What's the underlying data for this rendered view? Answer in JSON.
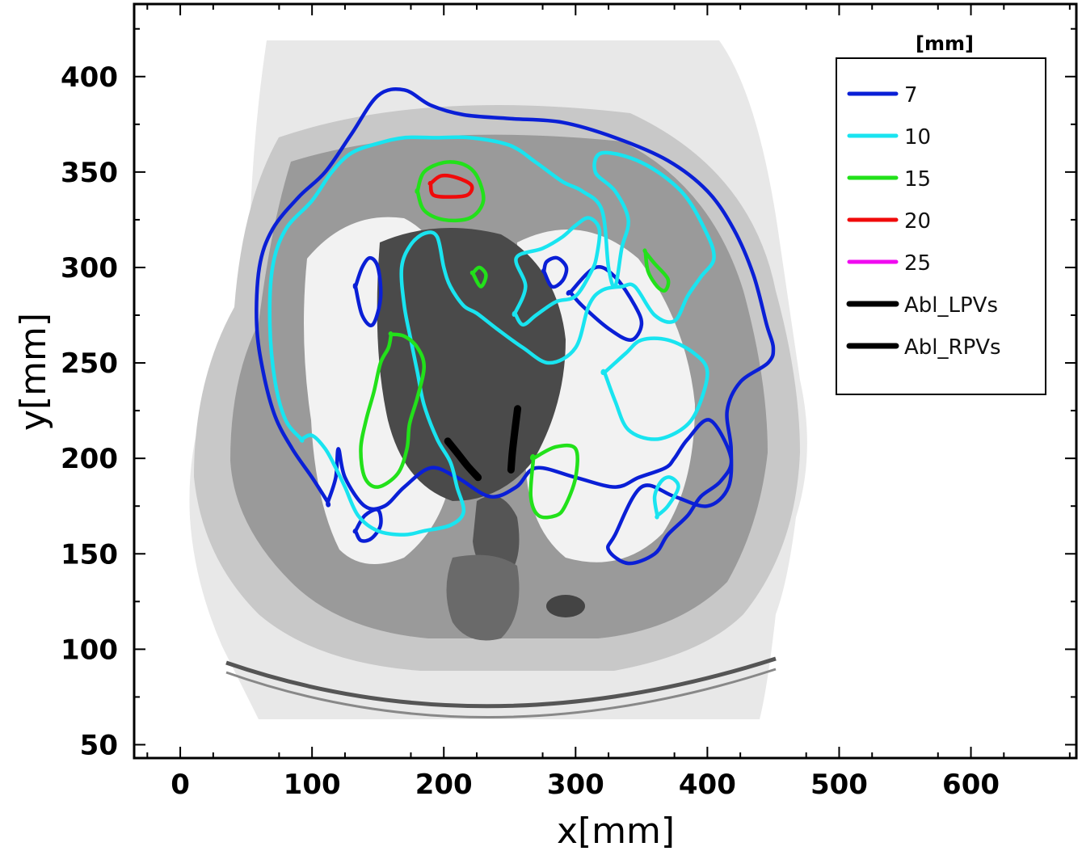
{
  "chart_data": {
    "type": "contour",
    "xlabel": "x[mm]",
    "ylabel": "y[mm]",
    "xlim": [
      -35,
      680
    ],
    "ylim": [
      43,
      438
    ],
    "x_ticks": [
      0,
      100,
      200,
      300,
      400,
      500,
      600
    ],
    "y_ticks": [
      50,
      100,
      150,
      200,
      250,
      300,
      350,
      400
    ],
    "x_tick_labels": [
      "0",
      "100",
      "200",
      "300",
      "400",
      "500",
      "600"
    ],
    "y_tick_labels": [
      "50",
      "100",
      "150",
      "200",
      "250",
      "300",
      "350",
      "400"
    ],
    "grid": false,
    "background": "grayscale axial CT slice of thorax",
    "legend": {
      "title": "[mm]",
      "position": "top-right",
      "entries": [
        {
          "label": "7",
          "color": "#0a1fd6"
        },
        {
          "label": "10",
          "color": "#19e4f0"
        },
        {
          "label": "15",
          "color": "#22e11a"
        },
        {
          "label": "20",
          "color": "#f00a0a"
        },
        {
          "label": "25",
          "color": "#f00af0"
        },
        {
          "label": "Abl_LPVs",
          "color": "#000000"
        },
        {
          "label": "Abl_RPVs",
          "color": "#000000"
        }
      ]
    },
    "series": [
      {
        "name": "7",
        "color": "#0a1fd6",
        "contours": [
          [
            [
              112,
              177
            ],
            [
              100,
              190
            ],
            [
              85,
              205
            ],
            [
              72,
              222
            ],
            [
              63,
              245
            ],
            [
              58,
              270
            ],
            [
              60,
              300
            ],
            [
              70,
              320
            ],
            [
              90,
              337
            ],
            [
              110,
              350
            ],
            [
              130,
              370
            ],
            [
              150,
              390
            ],
            [
              170,
              393
            ],
            [
              190,
              385
            ],
            [
              215,
              380
            ],
            [
              250,
              378
            ],
            [
              290,
              376
            ],
            [
              330,
              368
            ],
            [
              370,
              356
            ],
            [
              400,
              340
            ],
            [
              420,
              320
            ],
            [
              435,
              296
            ],
            [
              445,
              270
            ],
            [
              450,
              258
            ],
            [
              446,
              250
            ],
            [
              425,
              240
            ],
            [
              415,
              225
            ],
            [
              418,
              205
            ],
            [
              416,
              185
            ],
            [
              400,
              175
            ],
            [
              375,
              180
            ],
            [
              350,
              185
            ],
            [
              330,
              160
            ],
            [
              325,
              152
            ],
            [
              340,
              145
            ],
            [
              360,
              150
            ],
            [
              370,
              160
            ],
            [
              385,
              170
            ],
            [
              395,
              180
            ],
            [
              410,
              188
            ],
            [
              418,
              200
            ],
            [
              402,
              220
            ],
            [
              385,
              210
            ],
            [
              375,
              200
            ],
            [
              368,
              195
            ],
            [
              348,
              190
            ],
            [
              330,
              185
            ],
            [
              300,
              190
            ],
            [
              270,
              195
            ],
            [
              255,
              185
            ],
            [
              235,
              180
            ],
            [
              210,
              190
            ],
            [
              190,
              195
            ],
            [
              170,
              185
            ],
            [
              155,
              175
            ],
            [
              140,
              175
            ],
            [
              125,
              190
            ],
            [
              120,
              205
            ],
            [
              118,
              190
            ],
            [
              112,
              177
            ]
          ],
          [
            [
              133,
              290
            ],
            [
              138,
              275
            ],
            [
              146,
              270
            ],
            [
              152,
              284
            ],
            [
              150,
              300
            ],
            [
              144,
              305
            ],
            [
              138,
              300
            ],
            [
              133,
              290
            ]
          ],
          [
            [
              276,
              298
            ],
            [
              282,
              290
            ],
            [
              290,
              293
            ],
            [
              293,
              300
            ],
            [
              286,
              305
            ],
            [
              278,
              303
            ],
            [
              276,
              298
            ]
          ],
          [
            [
              296,
              287
            ],
            [
              315,
              300
            ],
            [
              330,
              295
            ],
            [
              345,
              280
            ],
            [
              350,
              270
            ],
            [
              342,
              262
            ],
            [
              325,
              268
            ],
            [
              305,
              280
            ],
            [
              296,
              287
            ]
          ],
          [
            [
              133,
              162
            ],
            [
              140,
              170
            ],
            [
              150,
              173
            ],
            [
              152,
              165
            ],
            [
              145,
              158
            ],
            [
              137,
              157
            ],
            [
              133,
              162
            ]
          ]
        ]
      },
      {
        "name": "10",
        "color": "#19e4f0",
        "contours": [
          [
            [
              92,
              210
            ],
            [
              80,
              220
            ],
            [
              72,
              240
            ],
            [
              68,
              270
            ],
            [
              70,
              300
            ],
            [
              80,
              320
            ],
            [
              100,
              335
            ],
            [
              115,
              350
            ],
            [
              130,
              360
            ],
            [
              150,
              365
            ],
            [
              170,
              368
            ],
            [
              195,
              368
            ],
            [
              220,
              368
            ],
            [
              250,
              364
            ],
            [
              270,
              355
            ],
            [
              290,
              345
            ],
            [
              305,
              340
            ],
            [
              320,
              330
            ],
            [
              325,
              300
            ],
            [
              330,
              290
            ],
            [
              335,
              310
            ],
            [
              340,
              325
            ],
            [
              330,
              340
            ],
            [
              315,
              350
            ],
            [
              320,
              360
            ],
            [
              350,
              355
            ],
            [
              380,
              340
            ],
            [
              398,
              320
            ],
            [
              405,
              305
            ],
            [
              395,
              295
            ],
            [
              385,
              285
            ],
            [
              375,
              272
            ],
            [
              360,
              275
            ],
            [
              345,
              290
            ],
            [
              335,
              290
            ],
            [
              320,
              288
            ],
            [
              310,
              280
            ],
            [
              300,
              258
            ],
            [
              280,
              250
            ],
            [
              260,
              258
            ],
            [
              240,
              268
            ],
            [
              225,
              276
            ],
            [
              215,
              280
            ],
            [
              205,
              290
            ],
            [
              200,
              300
            ],
            [
              195,
              316
            ],
            [
              186,
              318
            ],
            [
              175,
              312
            ],
            [
              168,
              300
            ],
            [
              170,
              280
            ],
            [
              175,
              262
            ],
            [
              180,
              245
            ],
            [
              185,
              228
            ],
            [
              195,
              210
            ],
            [
              205,
              198
            ],
            [
              210,
              185
            ],
            [
              215,
              172
            ],
            [
              205,
              165
            ],
            [
              185,
              162
            ],
            [
              170,
              160
            ],
            [
              150,
              162
            ],
            [
              135,
              170
            ],
            [
              125,
              185
            ],
            [
              118,
              195
            ],
            [
              110,
              205
            ],
            [
              100,
              212
            ],
            [
              92,
              210
            ]
          ],
          [
            [
              254,
              276
            ],
            [
              262,
              290
            ],
            [
              255,
              305
            ],
            [
              275,
              310
            ],
            [
              290,
              316
            ],
            [
              300,
              322
            ],
            [
              310,
              326
            ],
            [
              318,
              320
            ],
            [
              316,
              306
            ],
            [
              312,
              298
            ],
            [
              300,
              285
            ],
            [
              285,
              282
            ],
            [
              270,
              275
            ],
            [
              260,
              270
            ],
            [
              254,
              276
            ]
          ],
          [
            [
              322,
              245
            ],
            [
              330,
              230
            ],
            [
              340,
              215
            ],
            [
              360,
              210
            ],
            [
              380,
              215
            ],
            [
              392,
              225
            ],
            [
              400,
              245
            ],
            [
              390,
              255
            ],
            [
              370,
              262
            ],
            [
              350,
              262
            ],
            [
              338,
              255
            ],
            [
              322,
              245
            ]
          ],
          [
            [
              362,
              170
            ],
            [
              370,
              175
            ],
            [
              378,
              185
            ],
            [
              372,
              190
            ],
            [
              365,
              188
            ],
            [
              360,
              180
            ],
            [
              362,
              170
            ]
          ]
        ]
      },
      {
        "name": "15",
        "color": "#22e11a",
        "contours": [
          [
            [
              180,
              340
            ],
            [
              185,
              350
            ],
            [
              200,
              355
            ],
            [
              215,
              354
            ],
            [
              225,
              348
            ],
            [
              230,
              335
            ],
            [
              220,
              326
            ],
            [
              200,
              325
            ],
            [
              185,
              330
            ],
            [
              180,
              340
            ]
          ],
          [
            [
              353,
              308
            ],
            [
              360,
              302
            ],
            [
              370,
              294
            ],
            [
              368,
              288
            ],
            [
              362,
              290
            ],
            [
              355,
              298
            ],
            [
              353,
              308
            ]
          ],
          [
            [
              222,
              297
            ],
            [
              227,
              300
            ],
            [
              232,
              296
            ],
            [
              228,
              290
            ],
            [
              222,
              297
            ]
          ],
          [
            [
              160,
              265
            ],
            [
              170,
              264
            ],
            [
              180,
              258
            ],
            [
              185,
              248
            ],
            [
              180,
              232
            ],
            [
              174,
              218
            ],
            [
              172,
              205
            ],
            [
              165,
              192
            ],
            [
              150,
              185
            ],
            [
              140,
              190
            ],
            [
              137,
              205
            ],
            [
              141,
              220
            ],
            [
              147,
              235
            ],
            [
              152,
              250
            ],
            [
              158,
              258
            ],
            [
              160,
              265
            ]
          ],
          [
            [
              268,
              200
            ],
            [
              285,
              206
            ],
            [
              300,
              205
            ],
            [
              300,
              190
            ],
            [
              292,
              175
            ],
            [
              285,
              170
            ],
            [
              272,
              170
            ],
            [
              266,
              180
            ],
            [
              268,
              200
            ]
          ]
        ]
      },
      {
        "name": "20",
        "color": "#f00a0a",
        "contours": [
          [
            [
              190,
              344
            ],
            [
              198,
              348
            ],
            [
              210,
              347
            ],
            [
              221,
              343
            ],
            [
              218,
              338
            ],
            [
              205,
              337
            ],
            [
              192,
              338
            ],
            [
              190,
              344
            ]
          ]
        ]
      },
      {
        "name": "25",
        "color": "#f00af0",
        "contours": []
      },
      {
        "name": "Abl_LPVs",
        "color": "#000000",
        "segments": [
          [
            [
              203,
              209
            ],
            [
              210,
              203
            ],
            [
              218,
              196
            ],
            [
              226,
              190
            ]
          ]
        ]
      },
      {
        "name": "Abl_RPVs",
        "color": "#000000",
        "segments": [
          [
            [
              256,
              226
            ],
            [
              254,
              215
            ],
            [
              252,
              203
            ],
            [
              251,
              194
            ]
          ]
        ]
      }
    ]
  }
}
